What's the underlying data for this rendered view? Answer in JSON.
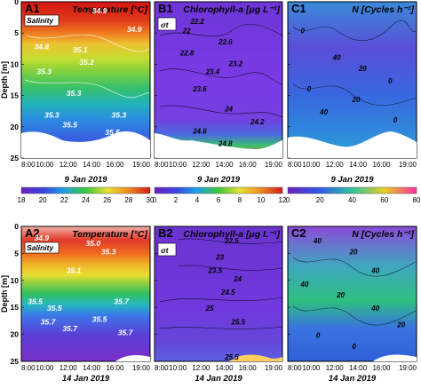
{
  "chart_data": [
    {
      "id": "A1",
      "type": "heatmap",
      "title": "Temperature [°C]",
      "ylabel": "Depth [m]",
      "xlabel": "9 Jan 2019",
      "x_ticks": [
        "8:00",
        "10:00",
        "12:00",
        "14:00",
        "16:00",
        "19:00"
      ],
      "y_ticks": [
        0,
        5,
        10,
        15,
        20,
        25
      ],
      "ylim": [
        25,
        0
      ],
      "overlay": "Salinity",
      "contour_labels": [
        "34.9",
        "34.9",
        "34.8",
        "35.1",
        "35.2",
        "35.3",
        "35.3",
        "35.3",
        "35.5",
        "35.5",
        "35.3"
      ],
      "colorbar": {
        "ticks": [
          "18",
          "20",
          "22",
          "24",
          "26",
          "28",
          "30"
        ],
        "range": [
          18,
          30
        ]
      }
    },
    {
      "id": "B1",
      "type": "heatmap",
      "title": "Chlorophyll-a [μg L⁻¹]",
      "xlabel": "9 Jan 2019",
      "x_ticks": [
        "8:00",
        "10:00",
        "12:00",
        "14:00",
        "16:00",
        "19:00"
      ],
      "y_ticks": [
        0,
        5,
        10,
        15,
        20,
        25
      ],
      "ylim": [
        25,
        0
      ],
      "overlay": "σt",
      "contour_labels": [
        "22.2",
        "22.6",
        "22.8",
        "23.4",
        "23.2",
        "23.6",
        "24",
        "24.2",
        "24.8",
        "24.6",
        "22"
      ],
      "colorbar": {
        "ticks": [
          "0",
          "2",
          "4",
          "6",
          "8",
          "10",
          "12"
        ],
        "range": [
          0,
          12
        ]
      }
    },
    {
      "id": "C1",
      "type": "heatmap",
      "title": "N [Cycles h⁻¹]",
      "xlabel": "9 Jan 2019",
      "x_ticks": [
        "8:00",
        "10:00",
        "12:00",
        "14:00",
        "16:00",
        "19:00"
      ],
      "y_ticks": [
        0,
        5,
        10,
        15,
        20,
        25
      ],
      "ylim": [
        25,
        0
      ],
      "contour_labels": [
        "0",
        "40",
        "20",
        "0",
        "40",
        "20",
        "0",
        "0"
      ],
      "colorbar": {
        "ticks": [
          "0",
          "20",
          "40",
          "60",
          "80"
        ],
        "range": [
          0,
          80
        ]
      }
    },
    {
      "id": "A2",
      "type": "heatmap",
      "title": "Temperature [°C]",
      "ylabel": "Depth [m]",
      "xlabel": "14 Jan 2019",
      "x_ticks": [
        "8:00",
        "10:00",
        "12:00",
        "14:00",
        "16:00",
        "19:00"
      ],
      "y_ticks": [
        0,
        5,
        10,
        15,
        20,
        25
      ],
      "ylim": [
        25,
        0
      ],
      "overlay": "Salinity",
      "contour_labels": [
        "34.9",
        "35.0",
        "35.3",
        "35.1",
        "35.5",
        "35.5",
        "35.7",
        "35.7",
        "35.5",
        "35.7",
        "35.7"
      ]
    },
    {
      "id": "B2",
      "type": "heatmap",
      "title": "Chlorophyll-a [μg L⁻¹]",
      "xlabel": "14 Jan 2019",
      "x_ticks": [
        "8:00",
        "10:00",
        "12:00",
        "14:00",
        "16:00",
        "19:00"
      ],
      "y_ticks": [
        0,
        5,
        10,
        15,
        20,
        25
      ],
      "ylim": [
        25,
        0
      ],
      "overlay": "σt",
      "contour_labels": [
        "22.5",
        "23",
        "23.5",
        "24",
        "24.5",
        "25",
        "25.5",
        "25.5"
      ]
    },
    {
      "id": "C2",
      "type": "heatmap",
      "title": "N [Cycles h⁻¹]",
      "xlabel": "14 Jan 2019",
      "x_ticks": [
        "8:00",
        "10:00",
        "12:00",
        "14:00",
        "16:00",
        "19:00"
      ],
      "y_ticks": [
        0,
        5,
        10,
        15,
        20,
        25
      ],
      "ylim": [
        25,
        0
      ],
      "contour_labels": [
        "40",
        "20",
        "40",
        "40",
        "20",
        "0",
        "40",
        "20",
        "0"
      ]
    }
  ]
}
